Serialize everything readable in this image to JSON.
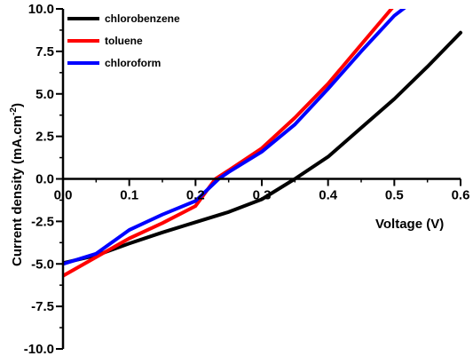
{
  "chart_data": {
    "type": "line",
    "xlabel": "Voltage (V)",
    "ylabel_main": "Current density (mA.cm",
    "ylabel_sup": "-2",
    "ylabel_close": ")",
    "xlim": [
      0.0,
      0.6
    ],
    "ylim": [
      -10.0,
      10.0
    ],
    "x_ticks": [
      0.0,
      0.1,
      0.2,
      0.3,
      0.4,
      0.5,
      0.6
    ],
    "x_tick_labels": [
      "0.0",
      "0.1",
      "0.2",
      "0.3",
      "0.4",
      "0.5",
      "0.6"
    ],
    "y_ticks": [
      10.0,
      7.5,
      5.0,
      2.5,
      0.0,
      -2.5,
      -5.0,
      -7.5,
      -10.0
    ],
    "y_tick_labels": [
      "10.0",
      "7.5",
      "5.0",
      "2.5",
      "0.0",
      "-2.5",
      "-5.0",
      "-7.5",
      "-10.0"
    ],
    "grid": false,
    "legend_position": "top-left",
    "series": [
      {
        "name": "chlorobenzene",
        "color": "#000000",
        "points": [
          [
            0.0,
            -4.95
          ],
          [
            0.05,
            -4.5
          ],
          [
            0.1,
            -3.8
          ],
          [
            0.15,
            -3.15
          ],
          [
            0.2,
            -2.55
          ],
          [
            0.25,
            -1.95
          ],
          [
            0.3,
            -1.2
          ],
          [
            0.35,
            0.0
          ],
          [
            0.4,
            1.3
          ],
          [
            0.45,
            3.0
          ],
          [
            0.5,
            4.7
          ],
          [
            0.55,
            6.6
          ],
          [
            0.6,
            8.6
          ]
        ]
      },
      {
        "name": "toluene",
        "color": "#ff0000",
        "points": [
          [
            0.0,
            -5.7
          ],
          [
            0.05,
            -4.6
          ],
          [
            0.1,
            -3.5
          ],
          [
            0.15,
            -2.6
          ],
          [
            0.2,
            -1.6
          ],
          [
            0.23,
            0.0
          ],
          [
            0.25,
            0.5
          ],
          [
            0.3,
            1.8
          ],
          [
            0.35,
            3.6
          ],
          [
            0.4,
            5.6
          ],
          [
            0.45,
            7.9
          ],
          [
            0.5,
            10.2
          ]
        ]
      },
      {
        "name": "chloroform",
        "color": "#0000ff",
        "points": [
          [
            0.0,
            -5.0
          ],
          [
            0.05,
            -4.4
          ],
          [
            0.1,
            -3.0
          ],
          [
            0.15,
            -2.1
          ],
          [
            0.2,
            -1.3
          ],
          [
            0.235,
            0.0
          ],
          [
            0.25,
            0.4
          ],
          [
            0.3,
            1.6
          ],
          [
            0.35,
            3.2
          ],
          [
            0.4,
            5.3
          ],
          [
            0.45,
            7.5
          ],
          [
            0.5,
            9.6
          ],
          [
            0.52,
            10.2
          ]
        ]
      }
    ]
  }
}
